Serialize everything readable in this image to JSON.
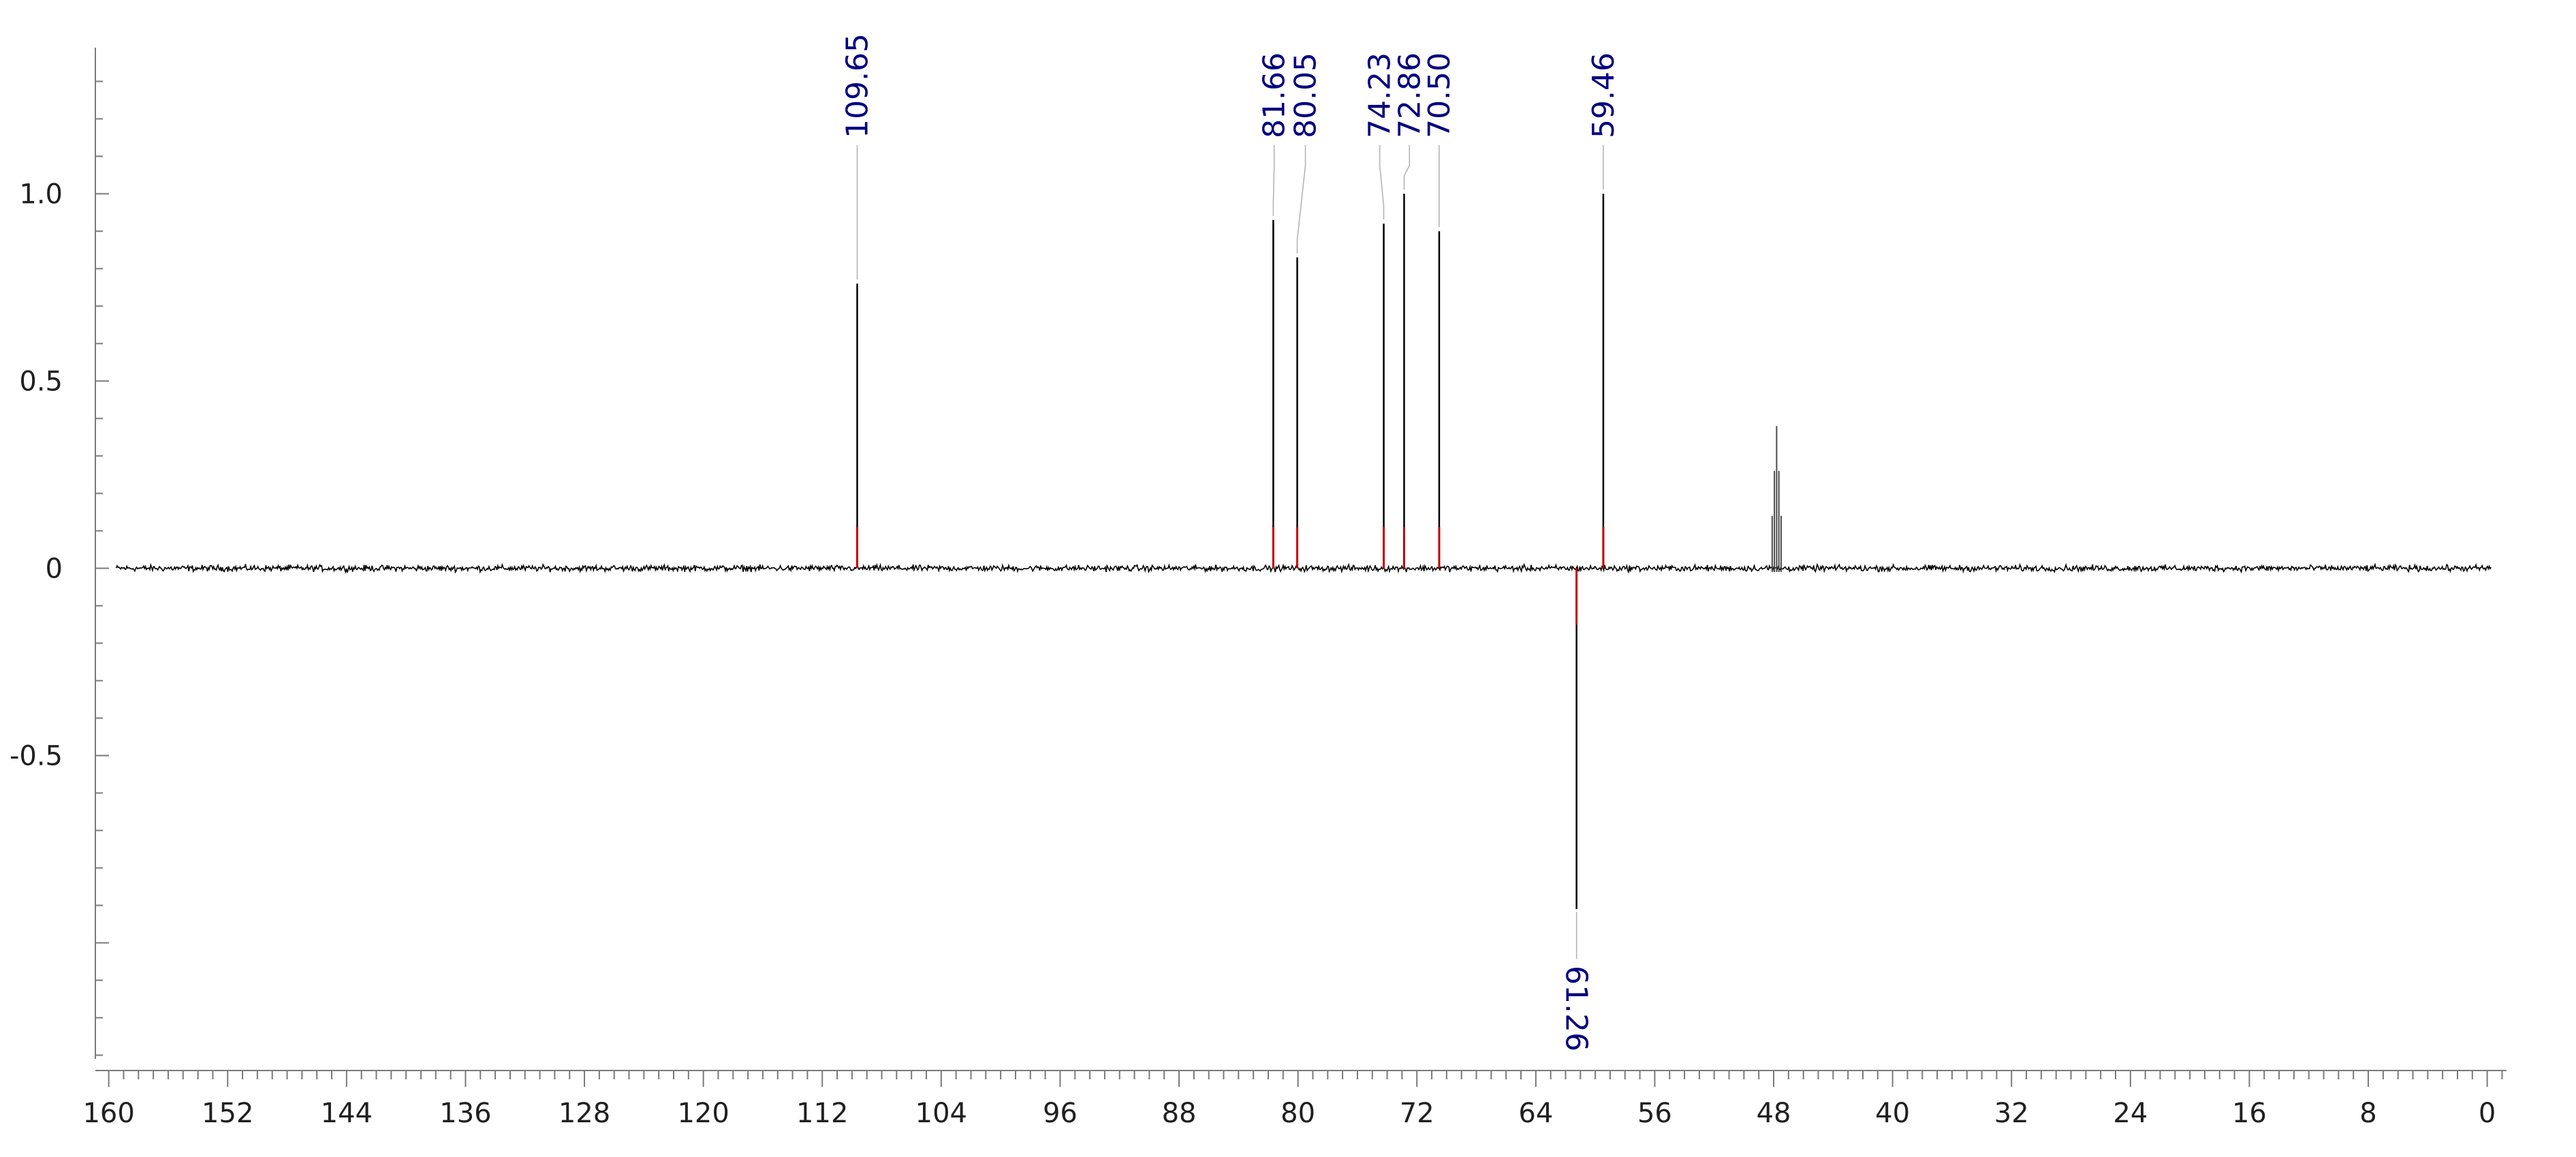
{
  "colors": {
    "spectrum": "#000000",
    "peak_base": "#c00000",
    "peak_label": "#000080",
    "axis": "#7a7a7a",
    "background": "#ffffff"
  },
  "chart_data": {
    "type": "line",
    "title": "",
    "xlabel": "",
    "ylabel": "",
    "x_reversed": true,
    "xlim": [
      160.9,
      -1.3
    ],
    "ylim": [
      -1.31,
      1.39
    ],
    "x_ticks": [
      160,
      152,
      144,
      136,
      128,
      120,
      112,
      104,
      96,
      88,
      80,
      72,
      64,
      56,
      48,
      40,
      32,
      24,
      16,
      8,
      0
    ],
    "x_tick_labels": [
      "160",
      "152",
      "144",
      "136",
      "128",
      "120",
      "112",
      "104",
      "96",
      "88",
      "80",
      "72",
      "64",
      "56",
      "48",
      "40",
      "32",
      "24",
      "16",
      "8",
      "0"
    ],
    "y_ticks": [
      1.0,
      0.5,
      0,
      -0.5
    ],
    "y_tick_labels": [
      "1.0",
      "0.5",
      "0",
      "-0.5"
    ],
    "baseline_range": [
      159.5,
      -0.3
    ],
    "noise_amplitude": 0.012,
    "peaks": [
      {
        "ppm": 109.65,
        "intensity": 0.76,
        "label": "109.65"
      },
      {
        "ppm": 81.66,
        "intensity": 0.93,
        "label": "81.66"
      },
      {
        "ppm": 80.05,
        "intensity": 0.83,
        "label": "80.05"
      },
      {
        "ppm": 74.23,
        "intensity": 0.92,
        "label": "74.23"
      },
      {
        "ppm": 72.86,
        "intensity": 1.0,
        "label": "72.86"
      },
      {
        "ppm": 70.5,
        "intensity": 0.9,
        "label": "70.50"
      },
      {
        "ppm": 61.26,
        "intensity": -0.91,
        "label": "61.26"
      },
      {
        "ppm": 59.46,
        "intensity": 1.0,
        "label": "59.46"
      }
    ],
    "label_x_ppm": [
      109.65,
      81.6,
      79.5,
      74.5,
      72.5,
      70.5,
      61.26,
      59.46
    ],
    "solvent_peaks": [
      {
        "ppm": 48.1,
        "intensity": 0.14
      },
      {
        "ppm": 47.95,
        "intensity": 0.26
      },
      {
        "ppm": 47.8,
        "intensity": 0.38
      },
      {
        "ppm": 47.65,
        "intensity": 0.26
      },
      {
        "ppm": 47.5,
        "intensity": 0.14
      }
    ],
    "grid": false,
    "legend": "none"
  }
}
